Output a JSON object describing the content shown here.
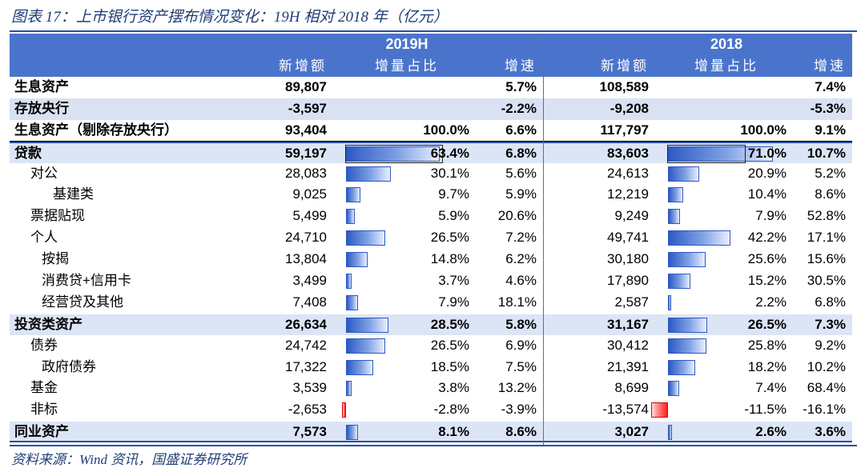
{
  "caption": "图表 17：上市银行资产摆布情况变化：19H 相对 2018 年（亿元）",
  "source": "资料来源：Wind 资讯，国盛证券研究所",
  "header": {
    "year1": "2019H",
    "year2": "2018",
    "col_new": "新增额",
    "col_share": "增量占比",
    "col_growth": "增速"
  },
  "colors": {
    "header_bg": "#4a74cc",
    "band_bg": "#d9e2f3",
    "bar_pos": "#2d59c4",
    "bar_neg": "#ff2020"
  },
  "rows": [
    {
      "label": "生息资产",
      "new1": "89,807",
      "share1": "",
      "growth1": "5.7%",
      "new2": "108,589",
      "share2": "",
      "growth2": "7.4%",
      "share1_value": null,
      "share2_value": null
    },
    {
      "label": "存放央行",
      "new1": "-3,597",
      "share1": "",
      "growth1": "-2.2%",
      "new2": "-9,208",
      "share2": "",
      "growth2": "-5.3%",
      "share1_value": null,
      "share2_value": null
    },
    {
      "label": "生息资产（剔除存放央行）",
      "new1": "93,404",
      "share1": "100.0%",
      "growth1": "6.6%",
      "new2": "117,797",
      "share2": "100.0%",
      "growth2": "9.1%",
      "share1_value": null,
      "share2_value": null
    },
    {
      "label": "贷款",
      "new1": "59,197",
      "share1": "63.4%",
      "growth1": "6.8%",
      "new2": "83,603",
      "share2": "71.0%",
      "growth2": "10.7%",
      "share1_value": 63.4,
      "share2_value": 71.0
    },
    {
      "label": "对公",
      "new1": "28,083",
      "share1": "30.1%",
      "growth1": "5.6%",
      "new2": "24,613",
      "share2": "20.9%",
      "growth2": "5.2%",
      "share1_value": 30.1,
      "share2_value": 20.9
    },
    {
      "label": "基建类",
      "new1": "9,025",
      "share1": "9.7%",
      "growth1": "5.9%",
      "new2": "12,219",
      "share2": "10.4%",
      "growth2": "8.6%",
      "share1_value": 9.7,
      "share2_value": 10.4
    },
    {
      "label": "票据贴现",
      "new1": "5,499",
      "share1": "5.9%",
      "growth1": "20.6%",
      "new2": "9,249",
      "share2": "7.9%",
      "growth2": "52.8%",
      "share1_value": 5.9,
      "share2_value": 7.9
    },
    {
      "label": "个人",
      "new1": "24,710",
      "share1": "26.5%",
      "growth1": "7.2%",
      "new2": "49,741",
      "share2": "42.2%",
      "growth2": "17.1%",
      "share1_value": 26.5,
      "share2_value": 42.2
    },
    {
      "label": "按揭",
      "new1": "13,804",
      "share1": "14.8%",
      "growth1": "6.2%",
      "new2": "30,180",
      "share2": "25.6%",
      "growth2": "15.6%",
      "share1_value": 14.8,
      "share2_value": 25.6
    },
    {
      "label": "消费贷+信用卡",
      "new1": "3,499",
      "share1": "3.7%",
      "growth1": "4.6%",
      "new2": "17,890",
      "share2": "15.2%",
      "growth2": "30.5%",
      "share1_value": 3.7,
      "share2_value": 15.2
    },
    {
      "label": "经营贷及其他",
      "new1": "7,408",
      "share1": "7.9%",
      "growth1": "18.1%",
      "new2": "2,587",
      "share2": "2.2%",
      "growth2": "6.8%",
      "share1_value": 7.9,
      "share2_value": 2.2
    },
    {
      "label": "投资类资产",
      "new1": "26,634",
      "share1": "28.5%",
      "growth1": "5.8%",
      "new2": "31,167",
      "share2": "26.5%",
      "growth2": "7.3%",
      "share1_value": 28.5,
      "share2_value": 26.5
    },
    {
      "label": "债券",
      "new1": "24,742",
      "share1": "26.5%",
      "growth1": "6.9%",
      "new2": "30,412",
      "share2": "25.8%",
      "growth2": "9.2%",
      "share1_value": 26.5,
      "share2_value": 25.8
    },
    {
      "label": "政府债券",
      "new1": "17,322",
      "share1": "18.5%",
      "growth1": "7.5%",
      "new2": "21,391",
      "share2": "18.2%",
      "growth2": "10.2%",
      "share1_value": 18.5,
      "share2_value": 18.2
    },
    {
      "label": "基金",
      "new1": "3,539",
      "share1": "3.8%",
      "growth1": "13.2%",
      "new2": "8,699",
      "share2": "7.4%",
      "growth2": "68.4%",
      "share1_value": 3.8,
      "share2_value": 7.4
    },
    {
      "label": "非标",
      "new1": "-2,653",
      "share1": "-2.8%",
      "growth1": "-3.9%",
      "new2": "-13,574",
      "share2": "-11.5%",
      "growth2": "-16.1%",
      "share1_value": -2.8,
      "share2_value": -11.5
    },
    {
      "label": "同业资产",
      "new1": "7,573",
      "share1": "8.1%",
      "growth1": "8.6%",
      "new2": "3,027",
      "share2": "2.6%",
      "growth2": "3.6%",
      "share1_value": 8.1,
      "share2_value": 2.6
    }
  ]
}
